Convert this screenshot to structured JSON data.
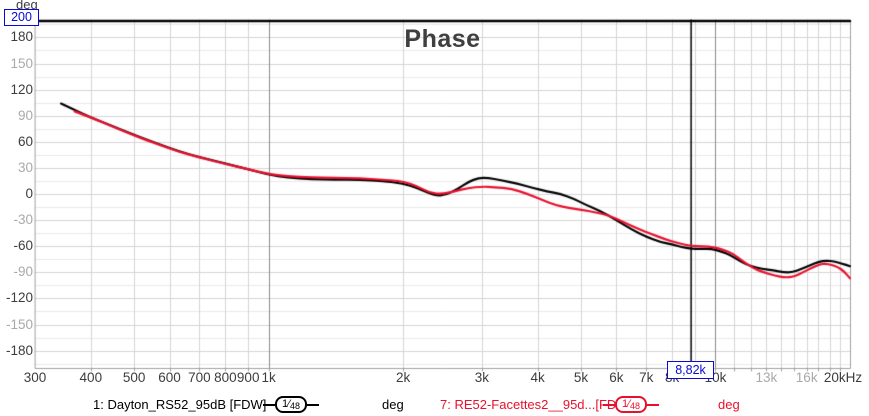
{
  "title": "Phase",
  "y_axis": {
    "unit": "deg",
    "ticks": [
      {
        "value": 180,
        "emphasis": "dark"
      },
      {
        "value": 150,
        "emphasis": "light"
      },
      {
        "value": 120,
        "emphasis": "dark"
      },
      {
        "value": 90,
        "emphasis": "light"
      },
      {
        "value": 60,
        "emphasis": "dark"
      },
      {
        "value": 30,
        "emphasis": "light"
      },
      {
        "value": 0,
        "emphasis": "dark"
      },
      {
        "value": -30,
        "emphasis": "light"
      },
      {
        "value": -60,
        "emphasis": "dark"
      },
      {
        "value": -90,
        "emphasis": "light"
      },
      {
        "value": -120,
        "emphasis": "dark"
      },
      {
        "value": -150,
        "emphasis": "light"
      },
      {
        "value": -180,
        "emphasis": "dark"
      }
    ]
  },
  "x_axis": {
    "ticks": [
      {
        "freq": 300,
        "label": "300",
        "emphasis": "dark"
      },
      {
        "freq": 400,
        "label": "400",
        "emphasis": "dark"
      },
      {
        "freq": 500,
        "label": "500",
        "emphasis": "dark"
      },
      {
        "freq": 600,
        "label": "600",
        "emphasis": "dark"
      },
      {
        "freq": 700,
        "label": "700",
        "emphasis": "dark"
      },
      {
        "freq": 800,
        "label": "800",
        "emphasis": "dark"
      },
      {
        "freq": 900,
        "label": "900",
        "emphasis": "dark"
      },
      {
        "freq": 1000,
        "label": "1k",
        "emphasis": "dark"
      },
      {
        "freq": 2000,
        "label": "2k",
        "emphasis": "dark"
      },
      {
        "freq": 3000,
        "label": "3k",
        "emphasis": "dark"
      },
      {
        "freq": 4000,
        "label": "4k",
        "emphasis": "dark"
      },
      {
        "freq": 5000,
        "label": "5k",
        "emphasis": "dark"
      },
      {
        "freq": 6000,
        "label": "6k",
        "emphasis": "dark"
      },
      {
        "freq": 7000,
        "label": "7k",
        "emphasis": "dark"
      },
      {
        "freq": 8000,
        "label": "8k",
        "emphasis": "dark"
      },
      {
        "freq": 10000,
        "label": "10k",
        "emphasis": "dark"
      },
      {
        "freq": 13000,
        "label": "13k",
        "emphasis": "light"
      },
      {
        "freq": 16000,
        "label": "16k",
        "emphasis": "light"
      },
      {
        "freq": 20000,
        "label": "20kHz",
        "emphasis": "dark"
      }
    ]
  },
  "cursor": {
    "freq": 8820,
    "x_label": "8,82k",
    "y_label": "200"
  },
  "chart_data": {
    "type": "line",
    "title": "Phase",
    "x_scale": "log",
    "x_range": [
      300,
      20000
    ],
    "y_range": [
      -200,
      200
    ],
    "y_unit": "deg",
    "grid": {
      "y_major_step": 30,
      "y_minor_step": 15,
      "x_decade_lines": [
        1000,
        10000
      ]
    },
    "legend_position": "bottom",
    "series": [
      {
        "name": "1: Dayton_RS52_95dB [FDW]",
        "color": "#000000",
        "points": [
          [
            343,
            104
          ],
          [
            360,
            99
          ],
          [
            400,
            88
          ],
          [
            450,
            77.5
          ],
          [
            500,
            68
          ],
          [
            560,
            58.5
          ],
          [
            630,
            49
          ],
          [
            700,
            42.5
          ],
          [
            800,
            35
          ],
          [
            900,
            28.5
          ],
          [
            1000,
            22
          ],
          [
            1100,
            19
          ],
          [
            1250,
            17
          ],
          [
            1400,
            16.5
          ],
          [
            1600,
            16.5
          ],
          [
            1800,
            15
          ],
          [
            2000,
            12
          ],
          [
            2150,
            7
          ],
          [
            2350,
            -2
          ],
          [
            2500,
            -1
          ],
          [
            2650,
            6
          ],
          [
            2800,
            14
          ],
          [
            2950,
            18.5
          ],
          [
            3100,
            18.5
          ],
          [
            3300,
            16
          ],
          [
            3600,
            12
          ],
          [
            3900,
            7
          ],
          [
            4200,
            3
          ],
          [
            4500,
            0
          ],
          [
            4800,
            -5
          ],
          [
            5100,
            -12
          ],
          [
            5500,
            -19
          ],
          [
            6000,
            -30
          ],
          [
            6500,
            -41
          ],
          [
            7000,
            -49
          ],
          [
            7500,
            -55
          ],
          [
            8000,
            -58
          ],
          [
            8400,
            -61
          ],
          [
            8820,
            -63
          ],
          [
            9300,
            -63
          ],
          [
            9800,
            -63
          ],
          [
            10300,
            -66
          ],
          [
            10800,
            -70
          ],
          [
            11400,
            -78
          ],
          [
            12000,
            -83
          ],
          [
            12700,
            -86
          ],
          [
            13500,
            -88
          ],
          [
            14200,
            -90
          ],
          [
            14900,
            -90
          ],
          [
            15600,
            -86
          ],
          [
            16300,
            -82
          ],
          [
            17000,
            -78
          ],
          [
            17700,
            -76.5
          ],
          [
            18400,
            -77.5
          ],
          [
            19200,
            -80
          ],
          [
            20000,
            -83
          ]
        ]
      },
      {
        "name": "7: RE52-Facettes2__95d...[FDW]",
        "color": "#e8112d",
        "points": [
          [
            368,
            95
          ],
          [
            400,
            88
          ],
          [
            450,
            77
          ],
          [
            500,
            67
          ],
          [
            560,
            58
          ],
          [
            630,
            48.5
          ],
          [
            700,
            42
          ],
          [
            800,
            34.5
          ],
          [
            900,
            28.5
          ],
          [
            1000,
            23
          ],
          [
            1100,
            20.5
          ],
          [
            1250,
            19
          ],
          [
            1400,
            18.5
          ],
          [
            1600,
            18
          ],
          [
            1800,
            16.5
          ],
          [
            2000,
            14.5
          ],
          [
            2150,
            9
          ],
          [
            2300,
            1
          ],
          [
            2450,
            0
          ],
          [
            2600,
            3
          ],
          [
            2800,
            7
          ],
          [
            3000,
            8.5
          ],
          [
            3200,
            8
          ],
          [
            3500,
            6
          ],
          [
            3800,
            0
          ],
          [
            4100,
            -7
          ],
          [
            4400,
            -13
          ],
          [
            4700,
            -16
          ],
          [
            5000,
            -18
          ],
          [
            5400,
            -21
          ],
          [
            5800,
            -25
          ],
          [
            6200,
            -32
          ],
          [
            6700,
            -40
          ],
          [
            7200,
            -46
          ],
          [
            7700,
            -52
          ],
          [
            8200,
            -56
          ],
          [
            8820,
            -60
          ],
          [
            9400,
            -60
          ],
          [
            9900,
            -61
          ],
          [
            10400,
            -64
          ],
          [
            10900,
            -68
          ],
          [
            11500,
            -77
          ],
          [
            12100,
            -85
          ],
          [
            12800,
            -90
          ],
          [
            13600,
            -94
          ],
          [
            14300,
            -96
          ],
          [
            15000,
            -95
          ],
          [
            15700,
            -90
          ],
          [
            16400,
            -85
          ],
          [
            17100,
            -81
          ],
          [
            17600,
            -80
          ],
          [
            18200,
            -81.5
          ],
          [
            18800,
            -84
          ],
          [
            19400,
            -89
          ],
          [
            20000,
            -97
          ]
        ]
      }
    ]
  },
  "legend": [
    {
      "smoothing": {
        "num": "1",
        "slash": "⁄",
        "den": "48"
      },
      "unit": "deg",
      "color": "#000000"
    },
    {
      "smoothing": {
        "num": "1",
        "slash": "⁄",
        "den": "48"
      },
      "unit": "deg",
      "color": "#e8112d"
    }
  ],
  "colors": {
    "cursor_accent": "#0a0ad2",
    "grid_minor": "#eaeaea",
    "grid_major": "#d4d4d4",
    "grid_decade": "#8a8a8a",
    "frame": "#a0a0a0",
    "cursor_line": "#000000",
    "tick_dark": "#3d3d3d",
    "tick_light": "#a9a9a9"
  }
}
